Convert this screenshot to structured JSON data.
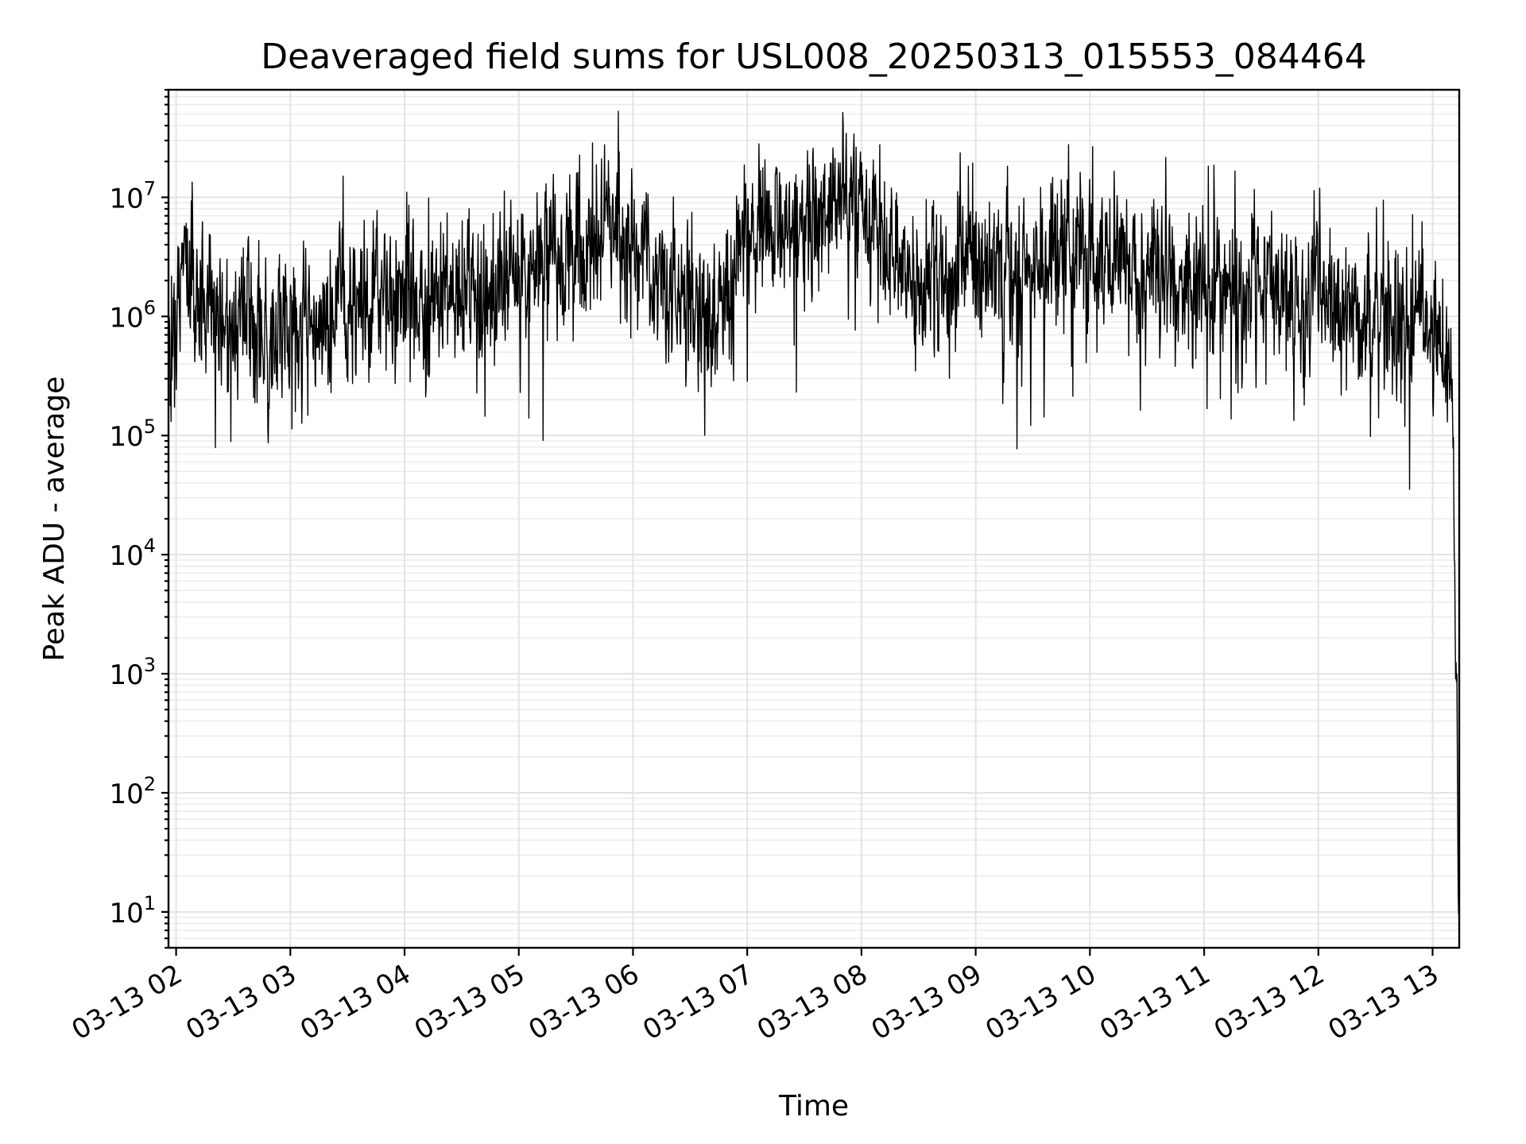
{
  "chart_data": {
    "type": "line",
    "title": "Deaveraged field sums for USL008_20250313_015553_084464",
    "xlabel": "Time",
    "ylabel": "Peak ADU - average",
    "y_scale": "log",
    "ylim": [
      5,
      80000000
    ],
    "xlim": [
      "2025-03-13T01:56:00",
      "2025-03-13T13:14:00"
    ],
    "grid": true,
    "x_ticks": [
      {
        "value": "2025-03-13T02:00:00",
        "label": "03-13 02"
      },
      {
        "value": "2025-03-13T03:00:00",
        "label": "03-13 03"
      },
      {
        "value": "2025-03-13T04:00:00",
        "label": "03-13 04"
      },
      {
        "value": "2025-03-13T05:00:00",
        "label": "03-13 05"
      },
      {
        "value": "2025-03-13T06:00:00",
        "label": "03-13 06"
      },
      {
        "value": "2025-03-13T07:00:00",
        "label": "03-13 07"
      },
      {
        "value": "2025-03-13T08:00:00",
        "label": "03-13 08"
      },
      {
        "value": "2025-03-13T09:00:00",
        "label": "03-13 09"
      },
      {
        "value": "2025-03-13T10:00:00",
        "label": "03-13 10"
      },
      {
        "value": "2025-03-13T11:00:00",
        "label": "03-13 11"
      },
      {
        "value": "2025-03-13T12:00:00",
        "label": "03-13 12"
      },
      {
        "value": "2025-03-13T13:00:00",
        "label": "03-13 13"
      }
    ],
    "y_ticks": [
      {
        "value": 10,
        "base": "10",
        "exp": "1"
      },
      {
        "value": 100,
        "base": "10",
        "exp": "2"
      },
      {
        "value": 1000,
        "base": "10",
        "exp": "3"
      },
      {
        "value": 10000,
        "base": "10",
        "exp": "4"
      },
      {
        "value": 100000,
        "base": "10",
        "exp": "5"
      },
      {
        "value": 1000000,
        "base": "10",
        "exp": "6"
      },
      {
        "value": 10000000,
        "base": "10",
        "exp": "7"
      }
    ],
    "series": [
      {
        "color": "#000000",
        "trend": {
          "time": [
            "2025-03-13T01:56:00",
            "2025-03-13T02:05:00",
            "2025-03-13T02:20:00",
            "2025-03-13T02:45:00",
            "2025-03-13T03:00:00",
            "2025-03-13T03:30:00",
            "2025-03-13T04:00:00",
            "2025-03-13T04:30:00",
            "2025-03-13T05:00:00",
            "2025-03-13T05:30:00",
            "2025-03-13T05:50:00",
            "2025-03-13T06:15:00",
            "2025-03-13T06:45:00",
            "2025-03-13T07:00:00",
            "2025-03-13T07:30:00",
            "2025-03-13T07:55:00",
            "2025-03-13T08:15:00",
            "2025-03-13T08:35:00",
            "2025-03-13T09:00:00",
            "2025-03-13T09:30:00",
            "2025-03-13T09:45:00",
            "2025-03-13T10:00:00",
            "2025-03-13T10:30:00",
            "2025-03-13T11:00:00",
            "2025-03-13T11:30:00",
            "2025-03-13T12:00:00",
            "2025-03-13T12:30:00",
            "2025-03-13T12:58:00",
            "2025-03-13T13:10:00",
            "2025-03-13T13:11:00",
            "2025-03-13T13:12:00",
            "2025-03-13T13:13:00",
            "2025-03-13T13:13:40"
          ],
          "value": [
            500000,
            2500000,
            1000000,
            900000,
            900000,
            1300000,
            1500000,
            1800000,
            2200000,
            3500000,
            6000000,
            2000000,
            900000,
            4000000,
            6000000,
            9000000,
            3500000,
            1500000,
            2500000,
            2000000,
            6000000,
            3000000,
            2000000,
            2000000,
            1700000,
            1300000,
            900000,
            1000000,
            400000,
            40000,
            3000,
            200,
            10
          ]
        }
      }
    ]
  }
}
